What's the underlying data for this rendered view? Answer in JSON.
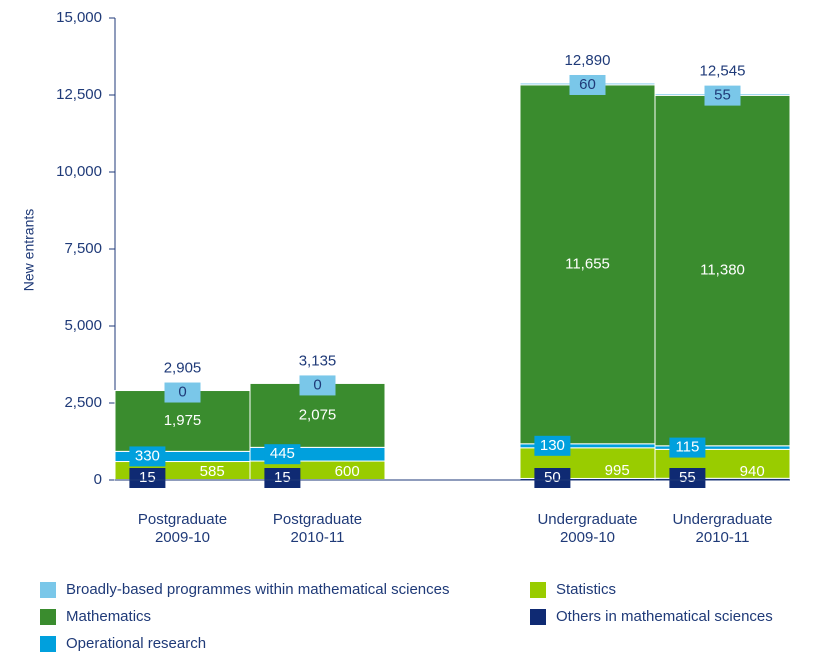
{
  "chart_data": {
    "type": "stacked_bar",
    "y_label": "New entrants",
    "categories": [
      [
        "Postgraduate",
        "2009-10"
      ],
      [
        "Postgraduate",
        "2010-11"
      ],
      null,
      [
        "Undergraduate",
        "2009-10"
      ],
      [
        "Undergraduate",
        "2010-11"
      ]
    ],
    "ylim": [
      0,
      15000
    ],
    "yticks": [
      0,
      {
        "value": 2500,
        "label": "2,500"
      },
      {
        "value": 5000,
        "label": "5,000"
      },
      {
        "value": 7500,
        "label": "7,500"
      },
      {
        "value": 10000,
        "label": "10,000"
      },
      {
        "value": 12500,
        "label": "12,500"
      },
      {
        "value": 15000,
        "label": "15,000"
      }
    ],
    "series": [
      {
        "name": "Others in mathematical sciences",
        "color": "#0f2a73",
        "values": [
          15,
          15,
          null,
          50,
          55
        ],
        "value_labels": [
          "15",
          "15",
          null,
          "50",
          "55"
        ]
      },
      {
        "name": "Statistics",
        "color": "#99cc00",
        "values": [
          585,
          600,
          null,
          995,
          940
        ],
        "value_labels": [
          "585",
          "600",
          null,
          "995",
          "940"
        ]
      },
      {
        "name": "Operational research",
        "color": "#00a0dd",
        "values": [
          330,
          445,
          null,
          130,
          115
        ],
        "value_labels": [
          "330",
          "445",
          null,
          "130",
          "115"
        ]
      },
      {
        "name": "Mathematics",
        "color": "#3a8c2e",
        "values": [
          1975,
          2075,
          null,
          11655,
          11380
        ],
        "value_labels": [
          "1,975",
          "2,075",
          null,
          "11,655",
          "11,380"
        ]
      },
      {
        "name": "Broadly-based programmes within mathematical sciences",
        "color": "#7ac7e9",
        "values": [
          0,
          0,
          null,
          60,
          55
        ],
        "value_labels": [
          "0",
          "0",
          null,
          "60",
          "55"
        ]
      }
    ],
    "totals": {
      "values": [
        2905,
        3135,
        null,
        12890,
        12545
      ],
      "value_labels": [
        "2,905",
        "3,135",
        null,
        "12,890",
        "12,545"
      ]
    }
  }
}
